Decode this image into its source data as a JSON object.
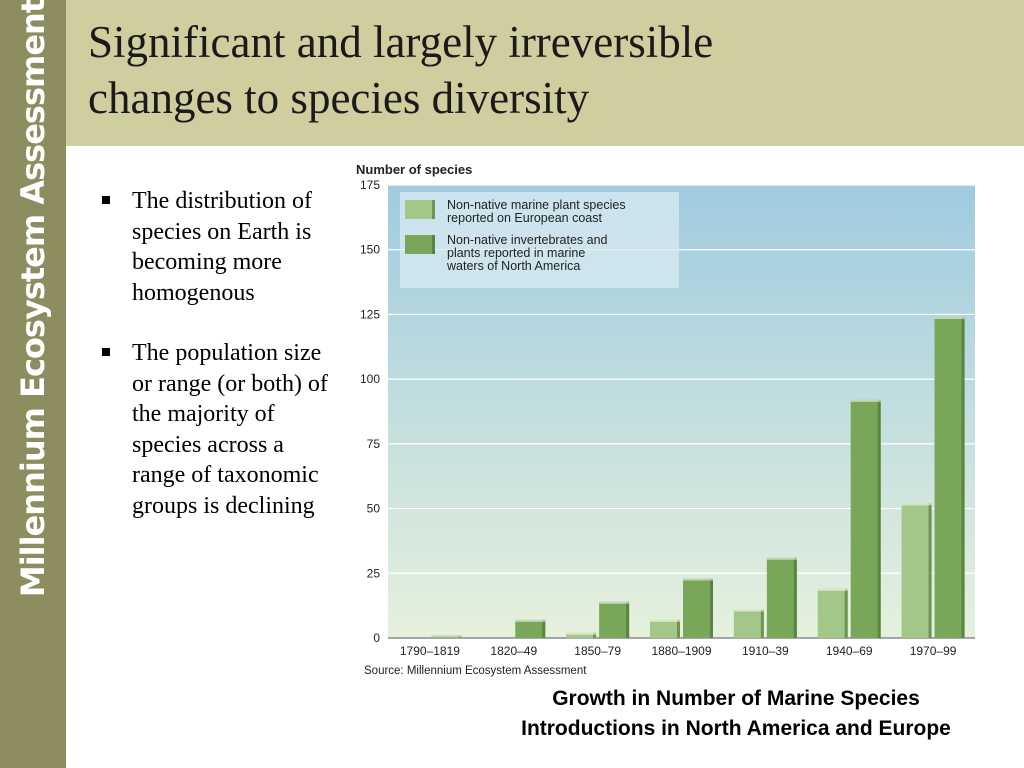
{
  "sidebar": {
    "label": "Millennium Ecosystem Assessment"
  },
  "header": {
    "title_line1": "Significant and largely irreversible",
    "title_line2": "changes to species diversity"
  },
  "bullets": [
    "The distribution of species on Earth is becoming more homogenous",
    "The population size or range (or both) of the majority of species across a range of taxonomic groups is declining"
  ],
  "caption": {
    "line1": "Growth in Number of Marine Species",
    "line2": "Introductions in North America and Europe"
  },
  "chart_data": {
    "type": "bar",
    "ylabel": "Number of species",
    "source": "Source: Millennium Ecosystem Assessment",
    "categories": [
      "1790–1819",
      "1820–49",
      "1850–79",
      "1880–1909",
      "1910–39",
      "1940–69",
      "1970–99"
    ],
    "series": [
      {
        "name": "Non-native marine plant species reported on European coast",
        "values": [
          0,
          0,
          2,
          7,
          11,
          19,
          52
        ],
        "color": "#a3c788"
      },
      {
        "name": "Non-native invertebrates and plants reported in marine waters of North America",
        "values": [
          1,
          7,
          14,
          23,
          31,
          92,
          124
        ],
        "color": "#7aa65a"
      }
    ],
    "legend_lines": [
      [
        "Non-native marine plant species",
        "reported on European coast"
      ],
      [
        "Non-native invertebrates and",
        "plants reported in marine",
        "waters of North America"
      ]
    ],
    "yticks": [
      0,
      25,
      50,
      75,
      100,
      125,
      150,
      175
    ],
    "ylim": [
      0,
      175
    ],
    "grid": true,
    "legend_position": "top-left"
  }
}
